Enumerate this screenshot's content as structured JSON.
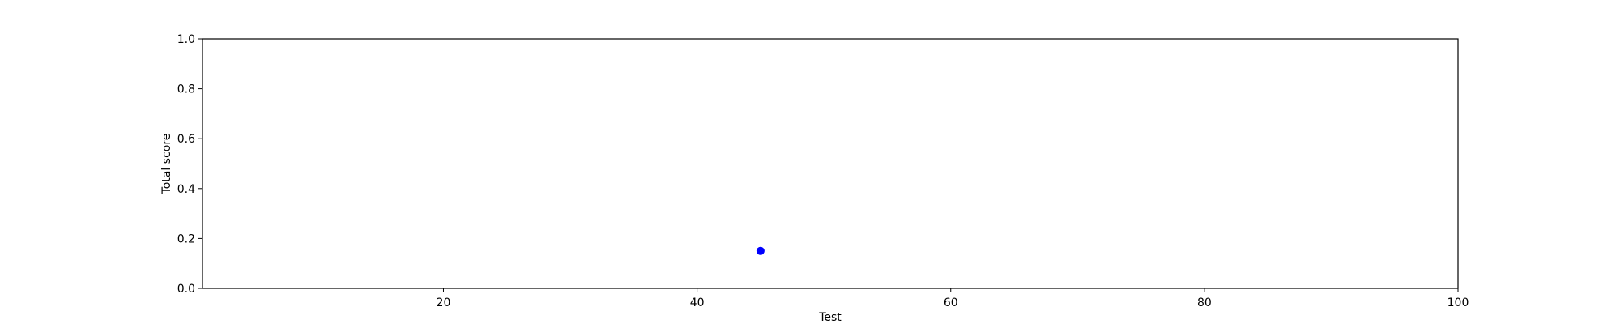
{
  "chart_data": {
    "type": "scatter",
    "title": "",
    "xlabel": "Test",
    "ylabel": "Total score",
    "xlim": [
      1,
      100
    ],
    "ylim": [
      0.0,
      1.0
    ],
    "xticks": [
      20,
      40,
      60,
      80,
      100
    ],
    "xtick_labels": [
      "20",
      "40",
      "60",
      "80",
      "100"
    ],
    "yticks": [
      0.0,
      0.2,
      0.4,
      0.6,
      0.8,
      1.0
    ],
    "ytick_labels": [
      "0.0",
      "0.2",
      "0.4",
      "0.6",
      "0.8",
      "1.0"
    ],
    "grid": false,
    "series": [
      {
        "color": "#0000ff",
        "points": [
          {
            "x": 45,
            "y": 0.15
          }
        ]
      }
    ]
  }
}
